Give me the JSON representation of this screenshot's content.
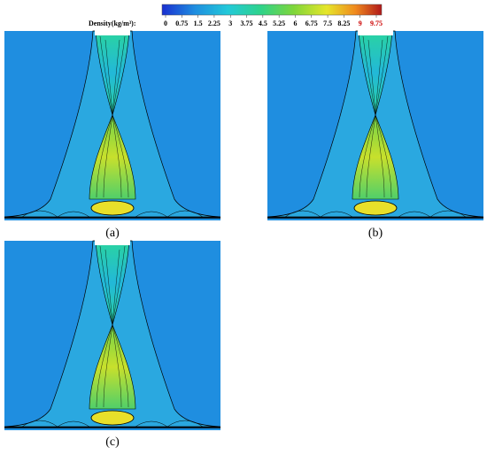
{
  "colorbar": {
    "title": "Density(kg/m³):",
    "ticks": [
      0,
      0.75,
      1.5,
      2.25,
      3,
      3.75,
      4.5,
      5.25,
      6,
      6.75,
      7.5,
      8.25,
      9,
      9.75
    ]
  },
  "panels": [
    {
      "label": "(a)"
    },
    {
      "label": "(b)"
    },
    {
      "label": "(c)"
    }
  ]
}
